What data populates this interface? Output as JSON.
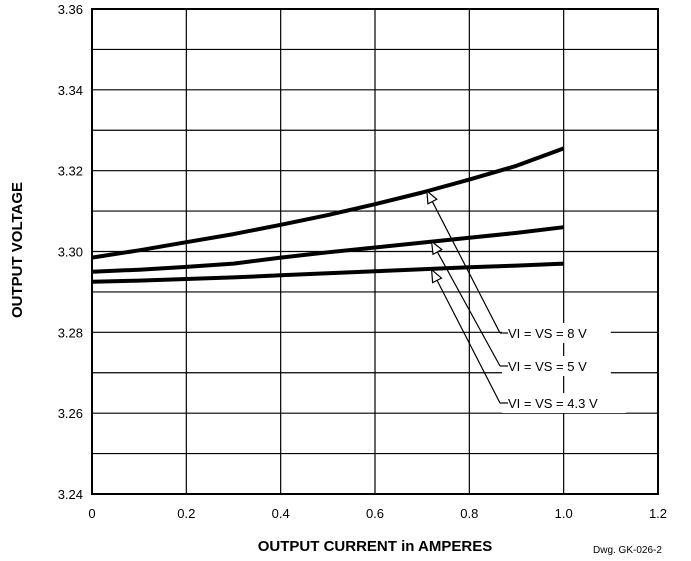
{
  "chart_data": {
    "type": "line",
    "title": "",
    "xlabel": "OUTPUT CURRENT in AMPERES",
    "ylabel": "OUTPUT VOLTAGE",
    "xlim": [
      0,
      1.2
    ],
    "ylim": [
      3.24,
      3.36
    ],
    "x_ticks": [
      "0",
      "0.2",
      "0.4",
      "0.6",
      "0.8",
      "1.0",
      "1.2"
    ],
    "y_ticks": [
      "3.24",
      "3.26",
      "3.28",
      "3.30",
      "3.32",
      "3.34",
      "3.36"
    ],
    "grid": true,
    "series": [
      {
        "name": "VI = VS = 8 V",
        "x": [
          0,
          0.1,
          0.2,
          0.3,
          0.4,
          0.5,
          0.6,
          0.7,
          0.8,
          0.9,
          1.0
        ],
        "y": [
          3.2985,
          3.3003,
          3.3023,
          3.3043,
          3.3066,
          3.309,
          3.3117,
          3.3146,
          3.3178,
          3.3212,
          3.3255
        ]
      },
      {
        "name": "VI = VS = 5 V",
        "x": [
          0,
          0.1,
          0.2,
          0.3,
          0.4,
          0.5,
          0.6,
          0.7,
          0.8,
          0.9,
          1.0
        ],
        "y": [
          3.295,
          3.2955,
          3.2962,
          3.297,
          3.2985,
          3.2998,
          3.301,
          3.3022,
          3.3034,
          3.3046,
          3.306
        ]
      },
      {
        "name": "VI = VS = 4.3 V",
        "x": [
          0,
          0.1,
          0.2,
          0.3,
          0.4,
          0.5,
          0.6,
          0.7,
          0.8,
          0.9,
          1.0
        ],
        "y": [
          3.2925,
          3.2928,
          3.2932,
          3.2936,
          3.2941,
          3.2946,
          3.2951,
          3.2956,
          3.2961,
          3.2965,
          3.297
        ]
      }
    ],
    "annotations": [
      {
        "text": "VI = VS = 8 V",
        "points_to": {
          "x": 0.71,
          "y": 3.315
        }
      },
      {
        "text": "VI = VS = 5 V",
        "points_to": {
          "x": 0.72,
          "y": 3.3025
        }
      },
      {
        "text": "VI = VS = 4.3 V",
        "points_to": {
          "x": 0.72,
          "y": 3.2955
        }
      }
    ],
    "footnote": "Dwg. GK-026-2"
  }
}
